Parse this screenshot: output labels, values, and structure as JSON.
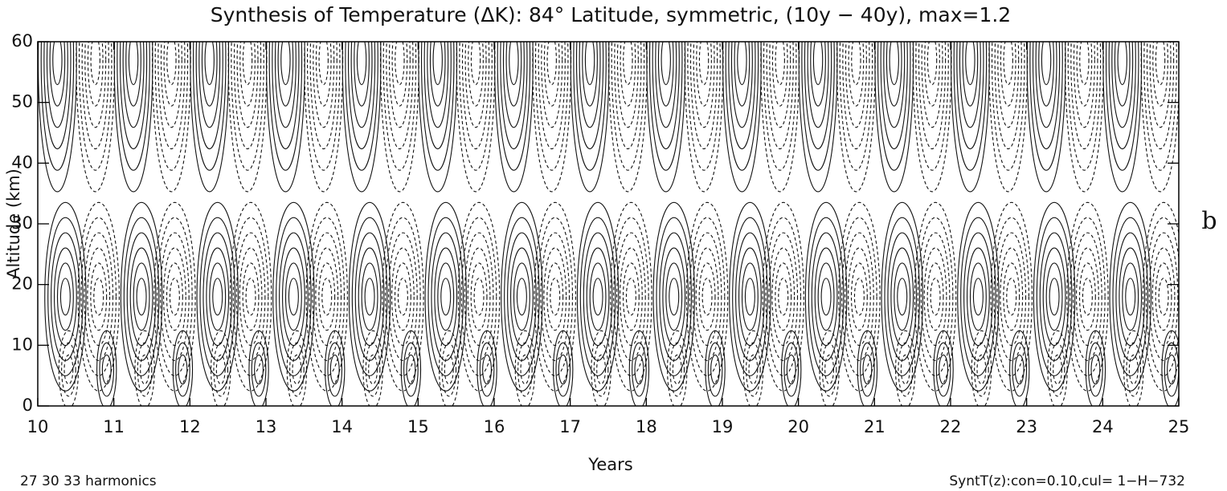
{
  "chart_data": {
    "type": "contour",
    "title": "Synthesis of Temperature (ΔK): 84° Latitude, symmetric, (10y − 40y), max=1.2",
    "xlabel": "Years",
    "ylabel": "Altitude (km)",
    "xlim": [
      10,
      25
    ],
    "ylim": [
      0,
      60
    ],
    "xticks": [
      10,
      11,
      12,
      13,
      14,
      15,
      16,
      17,
      18,
      19,
      20,
      21,
      22,
      23,
      24,
      25
    ],
    "yticks": [
      0,
      10,
      20,
      30,
      40,
      50,
      60
    ],
    "panel_label": "b",
    "footnote_left": "27 30 33 harmonics",
    "footnote_right": "SyntT(z):con=0.10,cul= 1−H−732"
  }
}
